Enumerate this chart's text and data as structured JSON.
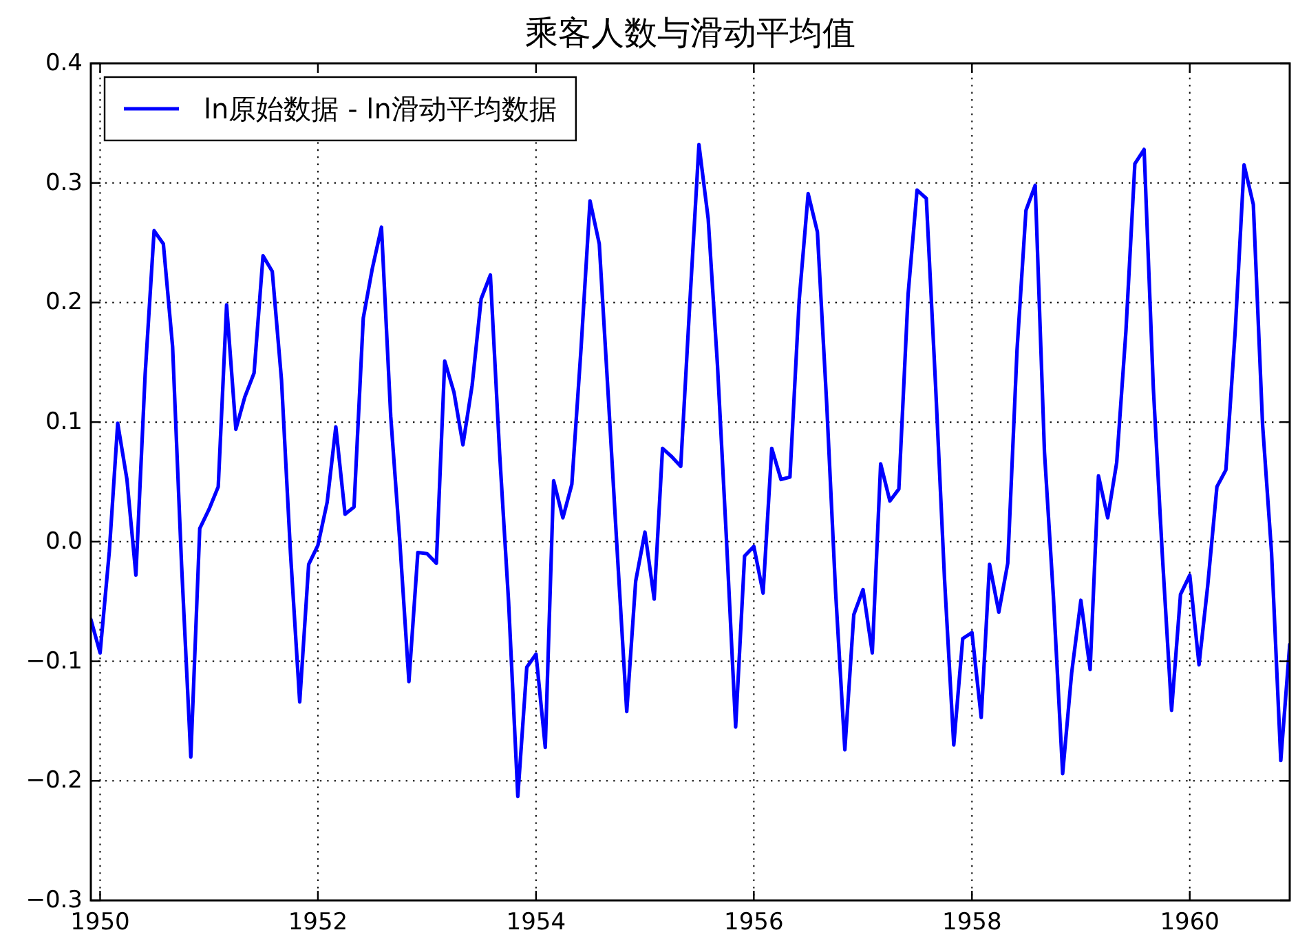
{
  "chart_data": {
    "type": "line",
    "title": "乘客人数与滑动平均值",
    "x": [
      "1949-12",
      "1950-01",
      "1950-02",
      "1950-03",
      "1950-04",
      "1950-05",
      "1950-06",
      "1950-07",
      "1950-08",
      "1950-09",
      "1950-10",
      "1950-11",
      "1950-12",
      "1951-01",
      "1951-02",
      "1951-03",
      "1951-04",
      "1951-05",
      "1951-06",
      "1951-07",
      "1951-08",
      "1951-09",
      "1951-10",
      "1951-11",
      "1951-12",
      "1952-01",
      "1952-02",
      "1952-03",
      "1952-04",
      "1952-05",
      "1952-06",
      "1952-07",
      "1952-08",
      "1952-09",
      "1952-10",
      "1952-11",
      "1952-12",
      "1953-01",
      "1953-02",
      "1953-03",
      "1953-04",
      "1953-05",
      "1953-06",
      "1953-07",
      "1953-08",
      "1953-09",
      "1953-10",
      "1953-11",
      "1953-12",
      "1954-01",
      "1954-02",
      "1954-03",
      "1954-04",
      "1954-05",
      "1954-06",
      "1954-07",
      "1954-08",
      "1954-09",
      "1954-10",
      "1954-11",
      "1954-12",
      "1955-01",
      "1955-02",
      "1955-03",
      "1955-04",
      "1955-05",
      "1955-06",
      "1955-07",
      "1955-08",
      "1955-09",
      "1955-10",
      "1955-11",
      "1955-12",
      "1956-01",
      "1956-02",
      "1956-03",
      "1956-04",
      "1956-05",
      "1956-06",
      "1956-07",
      "1956-08",
      "1956-09",
      "1956-10",
      "1956-11",
      "1956-12",
      "1957-01",
      "1957-02",
      "1957-03",
      "1957-04",
      "1957-05",
      "1957-06",
      "1957-07",
      "1957-08",
      "1957-09",
      "1957-10",
      "1957-11",
      "1957-12",
      "1958-01",
      "1958-02",
      "1958-03",
      "1958-04",
      "1958-05",
      "1958-06",
      "1958-07",
      "1958-08",
      "1958-09",
      "1958-10",
      "1958-11",
      "1958-12",
      "1959-01",
      "1959-02",
      "1959-03",
      "1959-04",
      "1959-05",
      "1959-06",
      "1959-07",
      "1959-08",
      "1959-09",
      "1959-10",
      "1959-11",
      "1959-12",
      "1960-01",
      "1960-02",
      "1960-03",
      "1960-04",
      "1960-05",
      "1960-06",
      "1960-07",
      "1960-08",
      "1960-09",
      "1960-10",
      "1960-11",
      "1960-12"
    ],
    "series": [
      {
        "name": "ln原始数据 - ln滑动平均数据",
        "color": "#0000ff",
        "values": [
          -0.065,
          -0.093,
          -0.008,
          0.099,
          0.052,
          -0.028,
          0.14,
          0.26,
          0.249,
          0.163,
          -0.019,
          -0.18,
          0.011,
          0.027,
          0.046,
          0.198,
          0.094,
          0.121,
          0.141,
          0.239,
          0.226,
          0.135,
          -0.009,
          -0.134,
          -0.019,
          -0.003,
          0.033,
          0.096,
          0.023,
          0.029,
          0.187,
          0.228,
          0.263,
          0.105,
          0.002,
          -0.117,
          -0.009,
          -0.01,
          -0.018,
          0.151,
          0.125,
          0.081,
          0.131,
          0.203,
          0.223,
          0.074,
          -0.05,
          -0.213,
          -0.105,
          -0.094,
          -0.172,
          0.051,
          0.02,
          0.048,
          0.162,
          0.285,
          0.249,
          0.118,
          -0.012,
          -0.142,
          -0.033,
          0.008,
          -0.048,
          0.078,
          0.071,
          0.063,
          0.202,
          0.332,
          0.27,
          0.148,
          0.003,
          -0.155,
          -0.012,
          -0.004,
          -0.043,
          0.078,
          0.052,
          0.054,
          0.202,
          0.291,
          0.259,
          0.116,
          -0.042,
          -0.174,
          -0.061,
          -0.04,
          -0.093,
          0.065,
          0.034,
          0.044,
          0.207,
          0.294,
          0.287,
          0.131,
          -0.031,
          -0.17,
          -0.081,
          -0.076,
          -0.147,
          -0.019,
          -0.059,
          -0.018,
          0.16,
          0.277,
          0.298,
          0.075,
          -0.046,
          -0.194,
          -0.11,
          -0.049,
          -0.107,
          0.055,
          0.02,
          0.066,
          0.176,
          0.316,
          0.328,
          0.128,
          -0.011,
          -0.141,
          -0.044,
          -0.028,
          -0.103,
          -0.037,
          0.046,
          0.06,
          0.175,
          0.315,
          0.282,
          0.098,
          -0.009,
          -0.183,
          -0.086
        ]
      }
    ],
    "xlim": [
      "1949-12",
      "1960-12"
    ],
    "xticks": [
      "1950",
      "1952",
      "1954",
      "1956",
      "1958",
      "1960"
    ],
    "ylim": [
      -0.3,
      0.4
    ],
    "yticks": [
      {
        "value": -0.3,
        "label": "−0.3"
      },
      {
        "value": -0.2,
        "label": "−0.2"
      },
      {
        "value": -0.1,
        "label": "−0.1"
      },
      {
        "value": 0,
        "label": "0.0"
      },
      {
        "value": 0.1,
        "label": "0.1"
      },
      {
        "value": 0.2,
        "label": "0.2"
      },
      {
        "value": 0.3,
        "label": "0.3"
      },
      {
        "value": 0.4,
        "label": "0.4"
      }
    ],
    "grid": true,
    "legend": "top left"
  }
}
